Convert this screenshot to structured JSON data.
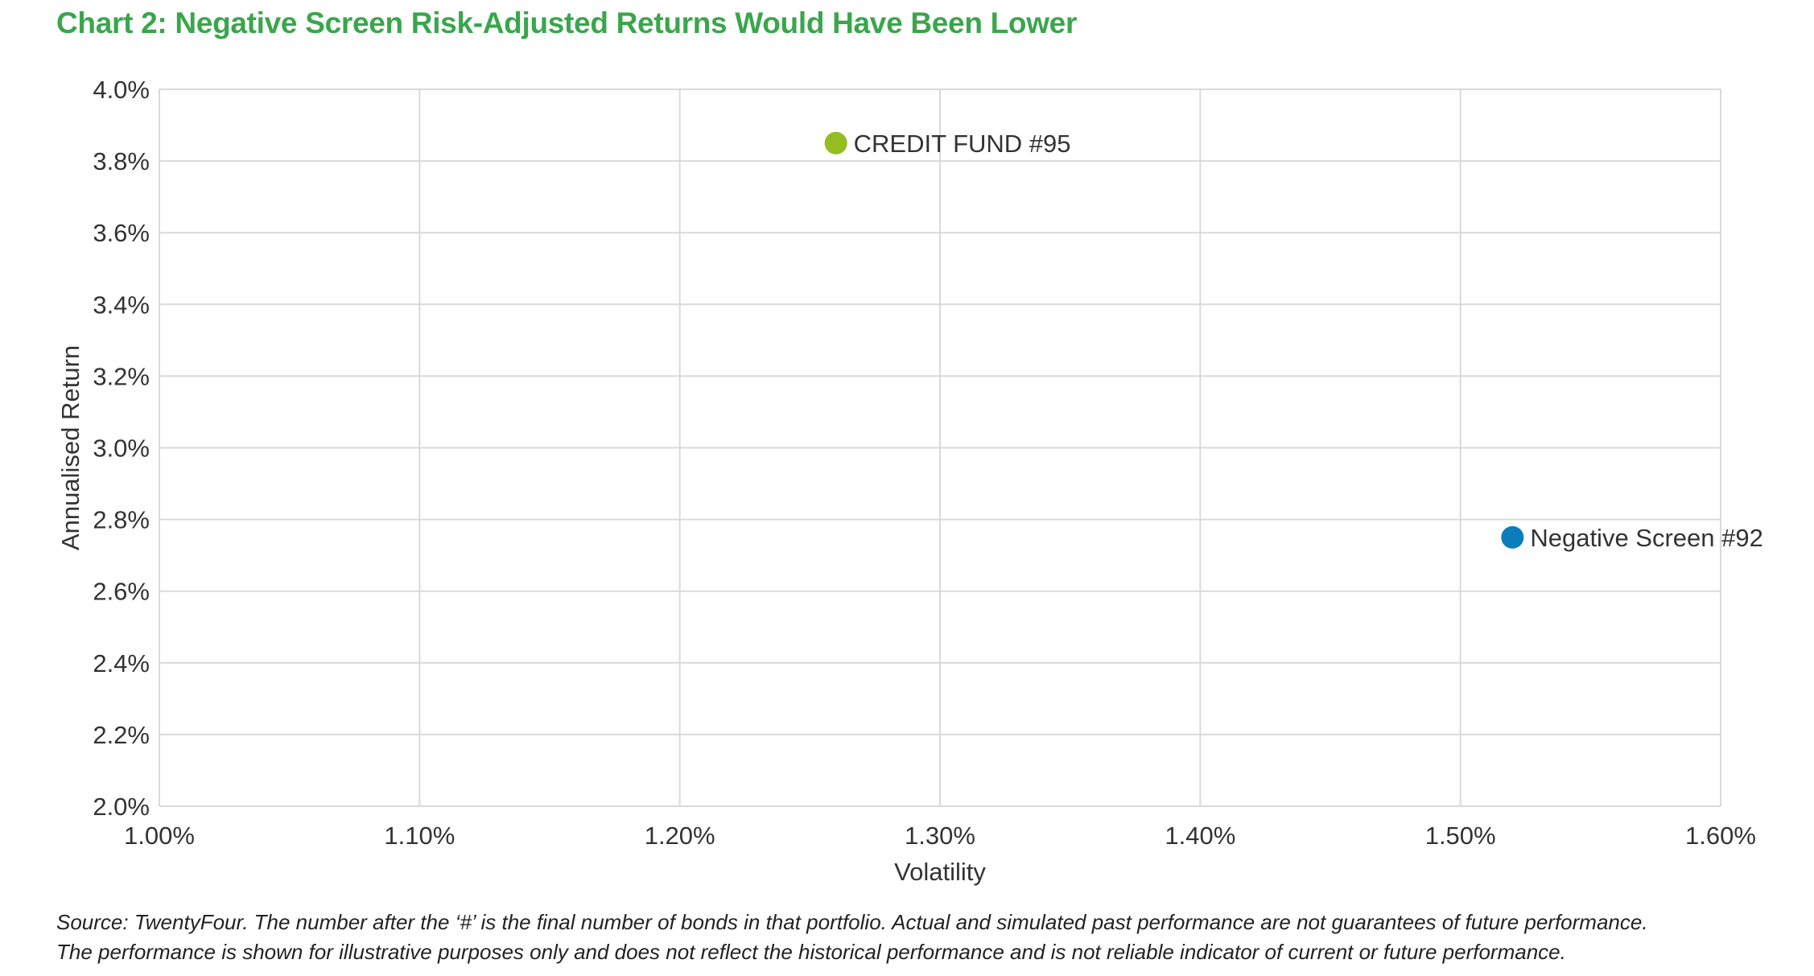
{
  "title": "Chart 2: Negative Screen Risk-Adjusted Returns Would Have Been Lower",
  "source_lines": [
    "Source: TwentyFour. The number after the ‘#’ is the final number of bonds in that portfolio. Actual and simulated past performance are not guarantees of future performance.",
    "The performance is shown for illustrative purposes only and does not reflect the historical performance and is not reliable indicator of current or future performance."
  ],
  "colors": {
    "title": "#3aa64c",
    "grid": "#d9d9d9",
    "axis_text": "#333333"
  },
  "chart_data": {
    "type": "scatter",
    "xlabel": "Volatility",
    "ylabel": "Annualised Return",
    "xlim": [
      1.0,
      1.6
    ],
    "ylim": [
      2.0,
      4.0
    ],
    "x_ticks": [
      1.0,
      1.1,
      1.2,
      1.3,
      1.4,
      1.5,
      1.6
    ],
    "x_tick_labels": [
      "1.00%",
      "1.10%",
      "1.20%",
      "1.30%",
      "1.40%",
      "1.50%",
      "1.60%"
    ],
    "y_ticks": [
      2.0,
      2.2,
      2.4,
      2.6,
      2.8,
      3.0,
      3.2,
      3.4,
      3.6,
      3.8,
      4.0
    ],
    "y_tick_labels": [
      "2.0%",
      "2.2%",
      "2.4%",
      "2.6%",
      "2.8%",
      "3.0%",
      "3.2%",
      "3.4%",
      "3.6%",
      "3.8%",
      "4.0%"
    ],
    "grid": true,
    "points": [
      {
        "label": "CREDIT FUND #95",
        "x": 1.26,
        "y": 3.85,
        "color": "#93bd20"
      },
      {
        "label": "Negative Screen #92",
        "x": 1.52,
        "y": 2.75,
        "color": "#0b7dbb"
      }
    ]
  }
}
